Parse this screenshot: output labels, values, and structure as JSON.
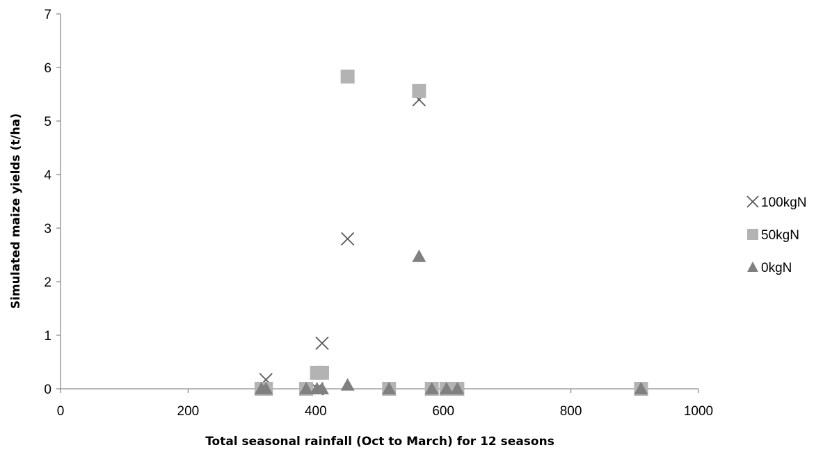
{
  "chart_data": {
    "type": "scatter",
    "title": "",
    "xlabel": "Total seasonal rainfall (Oct to March) for 12 seasons",
    "ylabel": "Simulated maize yields (t/ha)",
    "xlim": [
      0,
      1000
    ],
    "ylim": [
      0,
      7
    ],
    "xticks": [
      "0",
      "200",
      "400",
      "600",
      "800",
      "1000"
    ],
    "yticks": [
      "0",
      "1",
      "2",
      "3",
      "4",
      "5",
      "6",
      "7"
    ],
    "grid": false,
    "legend_position": "right",
    "series": [
      {
        "name": "100kgN",
        "marker": "x",
        "color": "#595959",
        "x": [
          315,
          322,
          385,
          402,
          410,
          450,
          515,
          562,
          582,
          605,
          622,
          910
        ],
        "y": [
          0,
          0.17,
          0,
          0,
          0.85,
          2.8,
          0,
          5.4,
          0,
          0,
          0,
          0
        ]
      },
      {
        "name": "50kgN",
        "marker": "square",
        "color": "#b3b3b3",
        "x": [
          315,
          322,
          385,
          402,
          410,
          450,
          515,
          562,
          582,
          605,
          622,
          910
        ],
        "y": [
          0,
          0,
          0,
          0.3,
          0.3,
          5.83,
          0,
          5.56,
          0,
          0,
          0,
          0
        ]
      },
      {
        "name": "0kgN",
        "marker": "triangle",
        "color": "#808080",
        "x": [
          315,
          322,
          385,
          402,
          410,
          450,
          515,
          562,
          582,
          605,
          622,
          910
        ],
        "y": [
          0,
          0,
          0,
          0,
          0,
          0.07,
          0,
          2.47,
          0,
          0,
          0,
          0
        ]
      }
    ]
  }
}
